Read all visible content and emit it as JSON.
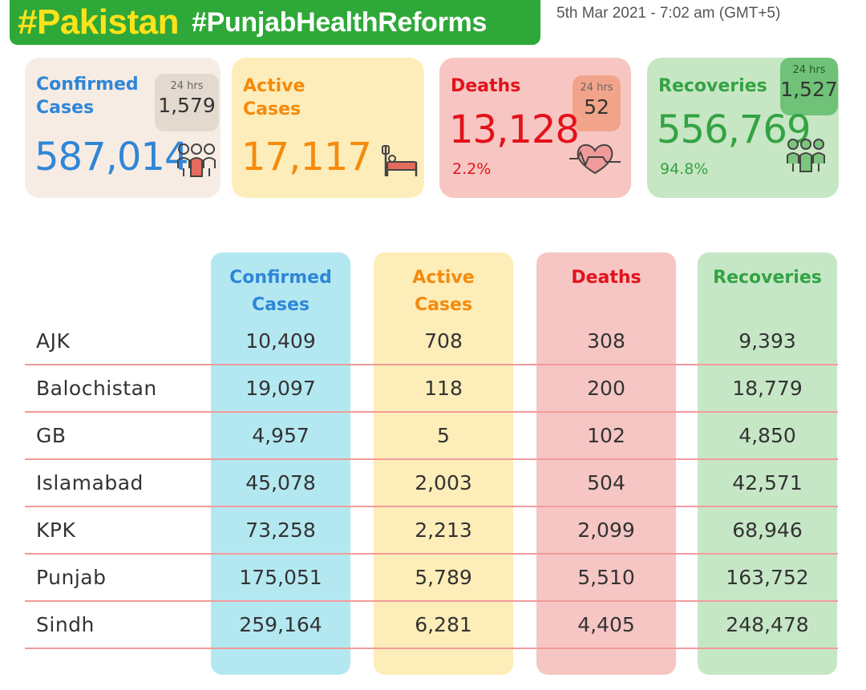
{
  "header": {
    "tag_main": "#Pakistan",
    "tag_sub": "#PunjabHealthReforms",
    "timestamp": "5th Mar 2021 - 7:02 am (GMT+5)"
  },
  "cards": {
    "confirmed": {
      "title_line1": "Confirmed",
      "title_line2": "Cases",
      "value": "587,014",
      "badge_label": "24 hrs",
      "badge_value": "1,579",
      "color": "#2f86d8",
      "icon": "people-icon"
    },
    "active": {
      "title_line1": "Active",
      "title_line2": "Cases",
      "value": "17,117",
      "color": "#f58a0b",
      "icon": "hospital-bed-icon"
    },
    "deaths": {
      "title": "Deaths",
      "value": "13,128",
      "percent": "2.2%",
      "badge_label": "24 hrs",
      "badge_value": "52",
      "color": "#e2121b",
      "icon": "heartbeat-icon"
    },
    "recoveries": {
      "title": "Recoveries",
      "value": "556,769",
      "percent": "94.8%",
      "badge_label": "24 hrs",
      "badge_value": "1,527",
      "color": "#33a343",
      "icon": "people-icon"
    }
  },
  "table": {
    "headers": {
      "confirmed": [
        "Confirmed",
        "Cases"
      ],
      "active": [
        "Active",
        "Cases"
      ],
      "deaths": "Deaths",
      "recoveries": "Recoveries"
    },
    "rows": [
      {
        "region": "AJK",
        "confirmed": "10,409",
        "active": "708",
        "deaths": "308",
        "recoveries": "9,393"
      },
      {
        "region": "Balochistan",
        "confirmed": "19,097",
        "active": "118",
        "deaths": "200",
        "recoveries": "18,779"
      },
      {
        "region": "GB",
        "confirmed": "4,957",
        "active": "5",
        "deaths": "102",
        "recoveries": "4,850"
      },
      {
        "region": "Islamabad",
        "confirmed": "45,078",
        "active": "2,003",
        "deaths": "504",
        "recoveries": "42,571"
      },
      {
        "region": "KPK",
        "confirmed": "73,258",
        "active": "2,213",
        "deaths": "2,099",
        "recoveries": "68,946"
      },
      {
        "region": "Punjab",
        "confirmed": "175,051",
        "active": "5,789",
        "deaths": "5,510",
        "recoveries": "163,752"
      },
      {
        "region": "Sindh",
        "confirmed": "259,164",
        "active": "6,281",
        "deaths": "4,405",
        "recoveries": "248,478"
      }
    ]
  }
}
